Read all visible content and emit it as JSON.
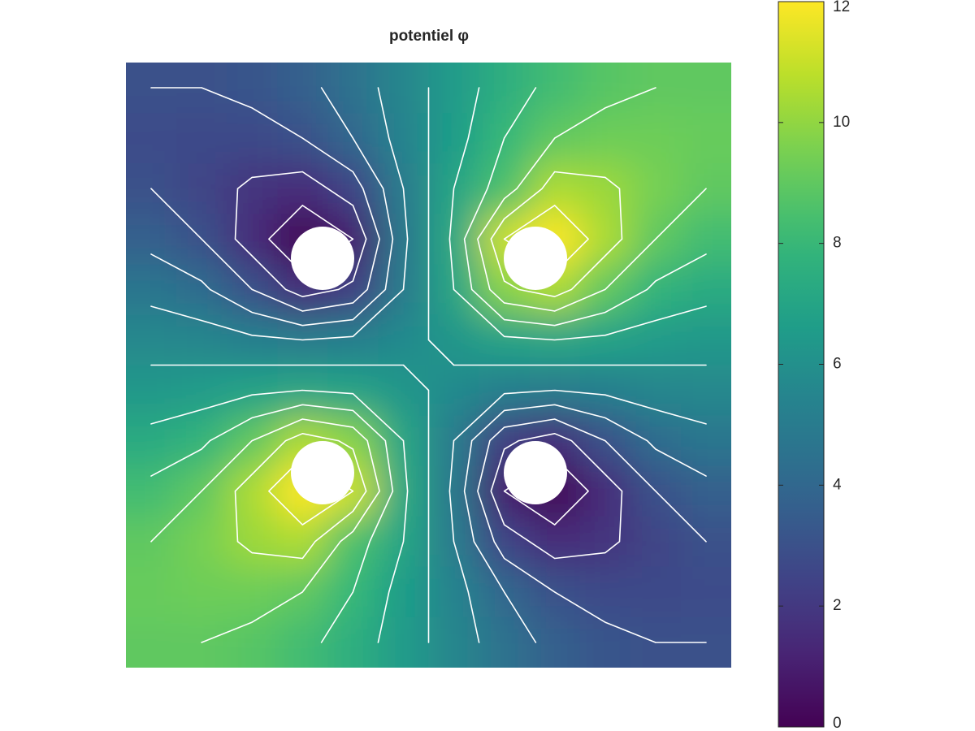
{
  "chart_data": {
    "type": "contour",
    "title": "potentiel φ",
    "z": [
      [
        3.0,
        3.0,
        3.2,
        3.7,
        4.5,
        5.5,
        6.5,
        7.5,
        8.3,
        8.8,
        9.0,
        9.0
      ],
      [
        2.8,
        2.7,
        2.7,
        3.0,
        4.0,
        5.4,
        6.6,
        8.0,
        9.0,
        9.3,
        9.3,
        9.2
      ],
      [
        3.0,
        2.5,
        1.8,
        1.5,
        2.5,
        5.0,
        7.0,
        8.5,
        10.5,
        10.2,
        9.5,
        9.0
      ],
      [
        3.7,
        3.0,
        1.5,
        0.0,
        1.0,
        4.8,
        7.2,
        11.0,
        12.0,
        10.5,
        9.0,
        8.3
      ],
      [
        4.7,
        4.2,
        3.0,
        1.5,
        2.2,
        5.0,
        7.0,
        9.8,
        10.5,
        9.0,
        7.8,
        7.3
      ],
      [
        5.6,
        5.5,
        5.2,
        5.0,
        5.2,
        5.7,
        6.3,
        6.8,
        7.0,
        6.8,
        6.5,
        6.4
      ],
      [
        6.4,
        6.5,
        6.8,
        7.0,
        6.8,
        6.3,
        5.7,
        5.2,
        5.0,
        5.2,
        5.5,
        5.6
      ],
      [
        7.3,
        7.8,
        9.0,
        10.5,
        9.8,
        7.0,
        5.0,
        2.2,
        1.5,
        3.0,
        4.2,
        4.7
      ],
      [
        8.3,
        9.0,
        10.5,
        12.0,
        11.0,
        7.2,
        4.8,
        1.0,
        0.0,
        1.5,
        3.0,
        3.7
      ],
      [
        9.0,
        9.5,
        10.2,
        10.5,
        8.5,
        7.0,
        5.0,
        2.5,
        1.5,
        1.8,
        2.5,
        3.0
      ],
      [
        9.2,
        9.3,
        9.3,
        9.0,
        8.0,
        6.6,
        5.4,
        4.0,
        3.0,
        2.7,
        2.7,
        2.8
      ],
      [
        9.0,
        9.0,
        8.8,
        8.3,
        7.5,
        6.5,
        5.5,
        4.5,
        3.7,
        3.2,
        3.0,
        3.0
      ]
    ],
    "contour_levels": [
      1,
      2,
      3,
      4,
      5,
      6,
      7,
      8,
      9,
      10,
      11
    ],
    "clim": [
      0,
      12
    ],
    "cticks": [
      0,
      2,
      4,
      6,
      8,
      10,
      12
    ]
  }
}
